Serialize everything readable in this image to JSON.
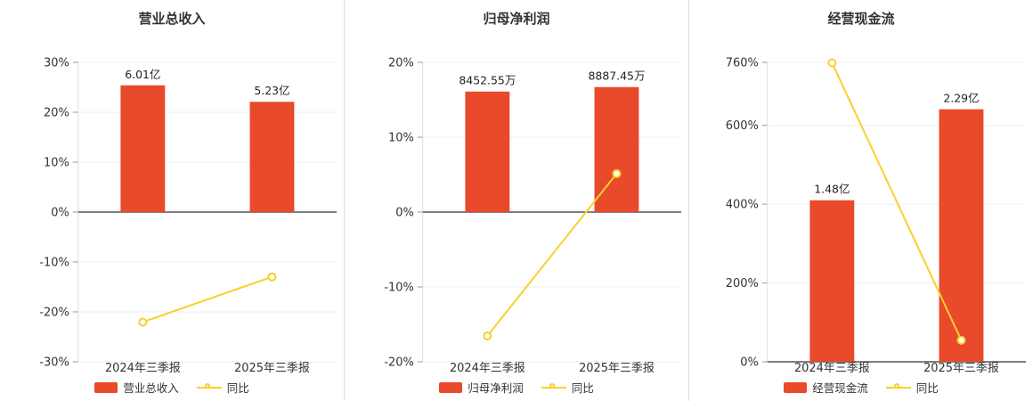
{
  "colors": {
    "bar": "#e84a2b",
    "line": "#f8d02c",
    "zero_axis": "#555555",
    "grid": "#efefef",
    "axis": "#dddddd",
    "tick": "#999999",
    "text": "#333333",
    "divider": "#dddddd"
  },
  "chart_data": [
    {
      "type": "bar+line",
      "title": "营业总收入",
      "categories": [
        "2024年三季报",
        "2025年三季报"
      ],
      "ylim": [
        -30,
        30
      ],
      "yticks": [
        30,
        20,
        10,
        0,
        -10,
        -20,
        -30
      ],
      "ytick_suffix": "%",
      "grid": "faint",
      "legend_position": "bottom",
      "series": [
        {
          "name": "营业总收入",
          "kind": "bar",
          "value_labels": [
            "6.01亿",
            "5.23亿"
          ],
          "plot_values": [
            25.4,
            22.1
          ]
        },
        {
          "name": "同比",
          "kind": "line",
          "values": [
            -22.05,
            -12.98
          ]
        }
      ]
    },
    {
      "type": "bar+line",
      "title": "归母净利润",
      "categories": [
        "2024年三季报",
        "2025年三季报"
      ],
      "ylim": [
        -20,
        20
      ],
      "yticks": [
        20,
        10,
        0,
        -10,
        -20
      ],
      "ytick_suffix": "%",
      "grid": "faint",
      "legend_position": "bottom",
      "series": [
        {
          "name": "归母净利润",
          "kind": "bar",
          "value_labels": [
            "8452.55万",
            "8887.45万"
          ],
          "plot_values": [
            16.1,
            16.7
          ]
        },
        {
          "name": "同比",
          "kind": "line",
          "values": [
            -16.55,
            5.14
          ]
        }
      ]
    },
    {
      "type": "bar+line",
      "title": "经营现金流",
      "categories": [
        "2024年三季报",
        "2025年三季报"
      ],
      "ylim": [
        0,
        760
      ],
      "yticks": [
        760,
        600,
        400,
        200,
        0
      ],
      "ytick_suffix": "%",
      "grid": "faint",
      "legend_position": "bottom",
      "series": [
        {
          "name": "经营现金流",
          "kind": "bar",
          "value_labels": [
            "1.48亿",
            "2.29亿"
          ],
          "plot_values": [
            410,
            641
          ]
        },
        {
          "name": "同比",
          "kind": "line",
          "values": [
            759,
            54.7
          ]
        }
      ]
    }
  ]
}
